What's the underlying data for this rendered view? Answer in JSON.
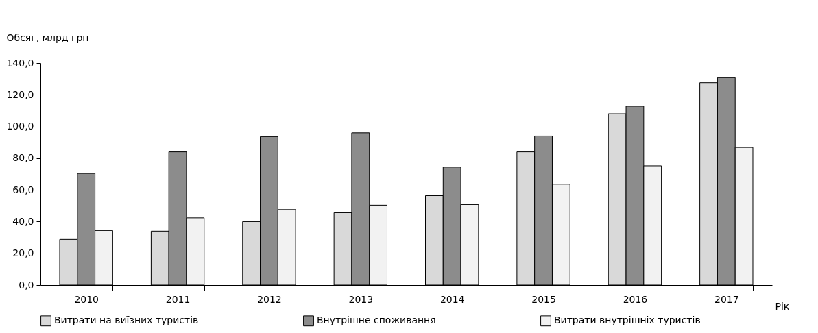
{
  "chart_data": {
    "type": "bar",
    "xlabel": "Рік",
    "ylabel": "Обсяг, млрд грн",
    "categories": [
      "2010",
      "2011",
      "2012",
      "2013",
      "2014",
      "2015",
      "2016",
      "2017"
    ],
    "series": [
      {
        "name": "Витрати на виїзних туристів",
        "color": "#d9d9d9",
        "values": [
          28.8,
          34,
          40,
          45.6,
          56.4,
          84,
          108,
          127.6
        ]
      },
      {
        "name": "Внутрішне споживання",
        "color": "#8c8c8c",
        "values": [
          70.4,
          84,
          93.6,
          96,
          74.4,
          94,
          112.8,
          130.8
        ]
      },
      {
        "name": "Витрати внутрішніх туристів",
        "color": "#f2f2f2",
        "values": [
          34.4,
          42.4,
          47.6,
          50.4,
          50.8,
          63.6,
          75.2,
          86.8
        ]
      }
    ],
    "ylim": [
      0,
      140
    ],
    "yticks": [
      {
        "value": 0,
        "label": "0,0"
      },
      {
        "value": 20,
        "label": "20,0"
      },
      {
        "value": 40,
        "label": "40,0"
      },
      {
        "value": 60,
        "label": "60,0"
      },
      {
        "value": 80,
        "label": "80,0"
      },
      {
        "value": 100,
        "label": "100,0"
      },
      {
        "value": 120,
        "label": "120,0"
      },
      {
        "value": 140,
        "label": "140,0"
      }
    ],
    "grid": false,
    "legend": "bottom"
  }
}
